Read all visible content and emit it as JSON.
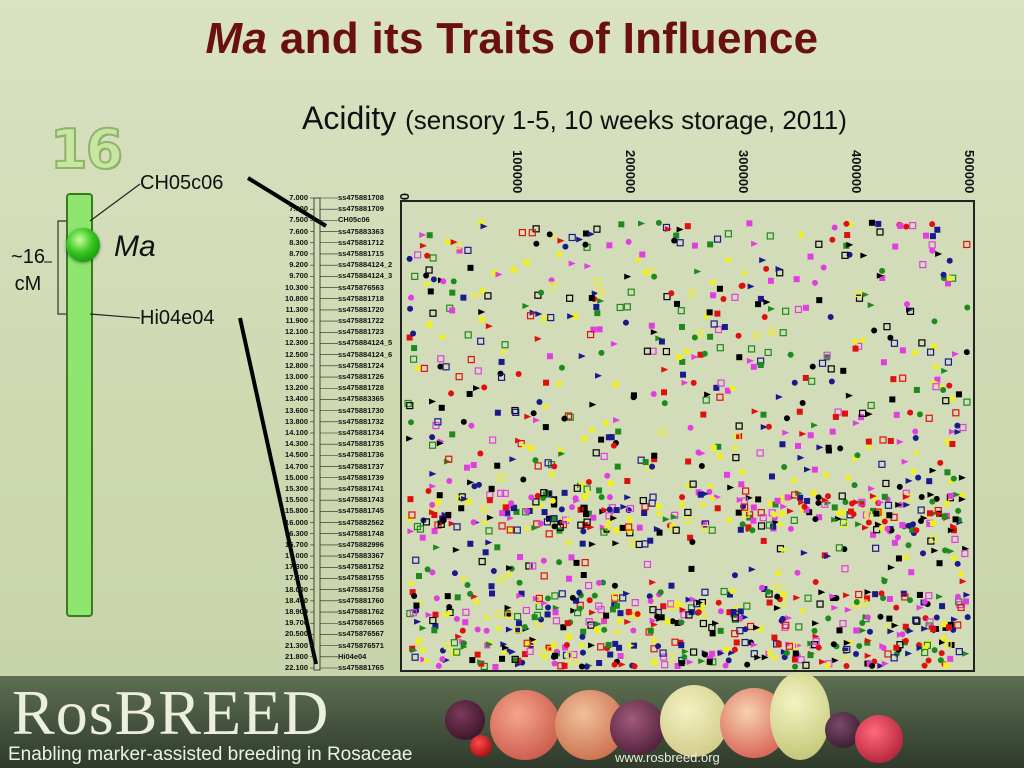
{
  "title": {
    "italic": "Ma",
    "rest": "and its Traits of Influence"
  },
  "subtitle": {
    "main": "Acidity",
    "detail": "(sensory 1-5, 10 weeks storage, 2011)"
  },
  "chromosome": {
    "number": "16",
    "locus": "Ma",
    "top_marker": "CH05c06",
    "bottom_marker": "Hi04e04",
    "distance_line1": "~16",
    "distance_line2": "cM"
  },
  "marker_map": [
    {
      "pos": "7.000",
      "name": "ss475881708"
    },
    {
      "pos": "7.300",
      "name": "ss475881709"
    },
    {
      "pos": "7.500",
      "name": "CH05c06"
    },
    {
      "pos": "7.600",
      "name": "ss475883363"
    },
    {
      "pos": "8.300",
      "name": "ss475881712"
    },
    {
      "pos": "8.700",
      "name": "ss475881715"
    },
    {
      "pos": "9.200",
      "name": "ss475884124_2"
    },
    {
      "pos": "9.700",
      "name": "ss475884124_3"
    },
    {
      "pos": "10.300",
      "name": "ss475876563"
    },
    {
      "pos": "10.800",
      "name": "ss475881718"
    },
    {
      "pos": "11.300",
      "name": "ss475881720"
    },
    {
      "pos": "11.900",
      "name": "ss475881722"
    },
    {
      "pos": "12.100",
      "name": "ss475881723"
    },
    {
      "pos": "12.300",
      "name": "ss475884124_5"
    },
    {
      "pos": "12.500",
      "name": "ss475884124_6"
    },
    {
      "pos": "12.800",
      "name": "ss475881724"
    },
    {
      "pos": "13.000",
      "name": "ss475881726"
    },
    {
      "pos": "13.200",
      "name": "ss475881728"
    },
    {
      "pos": "13.400",
      "name": "ss475883365"
    },
    {
      "pos": "13.600",
      "name": "ss475881730"
    },
    {
      "pos": "13.800",
      "name": "ss475881732"
    },
    {
      "pos": "14.100",
      "name": "ss475881734"
    },
    {
      "pos": "14.300",
      "name": "ss475881735"
    },
    {
      "pos": "14.500",
      "name": "ss475881736"
    },
    {
      "pos": "14.700",
      "name": "ss475881737"
    },
    {
      "pos": "15.000",
      "name": "ss475881739"
    },
    {
      "pos": "15.300",
      "name": "ss475881741"
    },
    {
      "pos": "15.500",
      "name": "ss475881743"
    },
    {
      "pos": "15.800",
      "name": "ss475881745"
    },
    {
      "pos": "16.000",
      "name": "ss475882562"
    },
    {
      "pos": "16.300",
      "name": "ss475881748"
    },
    {
      "pos": "16.700",
      "name": "ss475882996"
    },
    {
      "pos": "17.000",
      "name": "ss475883367"
    },
    {
      "pos": "17.300",
      "name": "ss475881752"
    },
    {
      "pos": "17.700",
      "name": "ss475881755"
    },
    {
      "pos": "18.000",
      "name": "ss475881758"
    },
    {
      "pos": "18.400",
      "name": "ss475881760"
    },
    {
      "pos": "18.900",
      "name": "ss475881762"
    },
    {
      "pos": "19.700",
      "name": "ss475876565"
    },
    {
      "pos": "20.500",
      "name": "ss475876567"
    },
    {
      "pos": "21.300",
      "name": "ss475876571"
    },
    {
      "pos": "21.800",
      "name": "Hi04e04"
    },
    {
      "pos": "22.100",
      "name": "ss475881765"
    }
  ],
  "plot_axis_ticks": [
    "0",
    "100000",
    "200000",
    "300000",
    "400000",
    "500000"
  ],
  "series_colors": [
    "#000000",
    "#e01010",
    "#1a1a8c",
    "#1e8a1e",
    "#e23de2",
    "#f0f020"
  ],
  "footer": {
    "logo": "RosBREED",
    "tagline": "Enabling marker-assisted breeding in Rosaceae",
    "url": "www.rosbreed.org"
  }
}
